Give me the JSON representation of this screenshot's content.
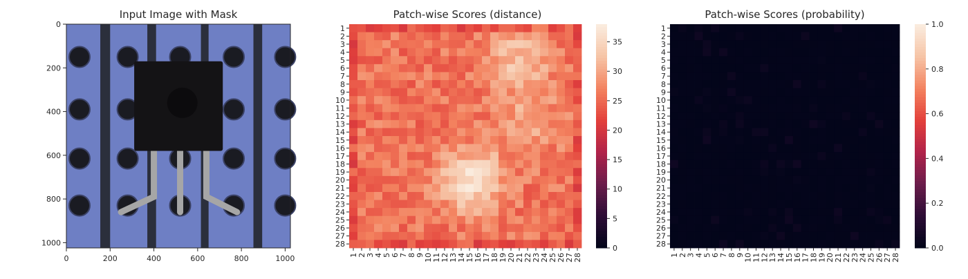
{
  "colors": {
    "board_blue": "#6e7fc4",
    "board_stripe": "#2b2f3c",
    "component_black": "#141315",
    "lead_silver": "#a6a6a6",
    "cmap": [
      "#03051a",
      "#2e0d36",
      "#6b1d4b",
      "#b1234a",
      "#e3403b",
      "#f3825f",
      "#f6c3a5",
      "#faebdd"
    ]
  },
  "chart_data": [
    {
      "type": "image",
      "title": "Input Image with Mask",
      "xticks": [
        "0",
        "200",
        "400",
        "600",
        "800",
        "1000"
      ],
      "yticks": [
        "0",
        "200",
        "400",
        "600",
        "800",
        "1000"
      ],
      "xlim": [
        0,
        1024
      ],
      "ylim": [
        1024,
        0
      ],
      "content": "transistor on blue perforated board"
    },
    {
      "type": "heatmap",
      "title": "Patch-wise Scores (distance)",
      "grid_size": [
        28,
        28
      ],
      "xticks": [
        "1",
        "2",
        "3",
        "4",
        "5",
        "6",
        "7",
        "8",
        "9",
        "10",
        "11",
        "12",
        "13",
        "14",
        "15",
        "16",
        "17",
        "18",
        "19",
        "20",
        "21",
        "22",
        "23",
        "24",
        "25",
        "26",
        "27",
        "28"
      ],
      "yticks": [
        "1",
        "2",
        "3",
        "4",
        "5",
        "6",
        "7",
        "8",
        "9",
        "10",
        "11",
        "12",
        "13",
        "14",
        "15",
        "16",
        "17",
        "18",
        "19",
        "20",
        "21",
        "22",
        "23",
        "24",
        "25",
        "26",
        "27",
        "28"
      ],
      "colorbar": {
        "min": 0,
        "max": 38,
        "ticks": [
          "0",
          "5",
          "10",
          "15",
          "20",
          "25",
          "30",
          "35"
        ]
      },
      "value_range": [
        18,
        38
      ],
      "hotspots": [
        {
          "row": 20,
          "col": 15,
          "value": 37
        },
        {
          "row": 5,
          "col": 21,
          "value": 33
        },
        {
          "row": 13,
          "col": 22,
          "value": 31
        }
      ],
      "typical_value": 26
    },
    {
      "type": "heatmap",
      "title": "Patch-wise Scores (probability)",
      "grid_size": [
        28,
        28
      ],
      "xticks": [
        "1",
        "2",
        "3",
        "4",
        "5",
        "6",
        "7",
        "8",
        "9",
        "10",
        "11",
        "12",
        "13",
        "14",
        "15",
        "16",
        "17",
        "18",
        "19",
        "20",
        "21",
        "22",
        "23",
        "24",
        "25",
        "26",
        "27",
        "28"
      ],
      "yticks": [
        "1",
        "2",
        "3",
        "4",
        "5",
        "6",
        "7",
        "8",
        "9",
        "10",
        "11",
        "12",
        "13",
        "14",
        "15",
        "16",
        "17",
        "18",
        "19",
        "20",
        "21",
        "22",
        "23",
        "24",
        "25",
        "26",
        "27",
        "28"
      ],
      "colorbar": {
        "min": 0,
        "max": 1,
        "ticks": [
          "0.0",
          "0.2",
          "0.4",
          "0.6",
          "0.8",
          "1.0"
        ]
      },
      "value_range": [
        0,
        0.04
      ],
      "typical_value": 0.0
    }
  ]
}
